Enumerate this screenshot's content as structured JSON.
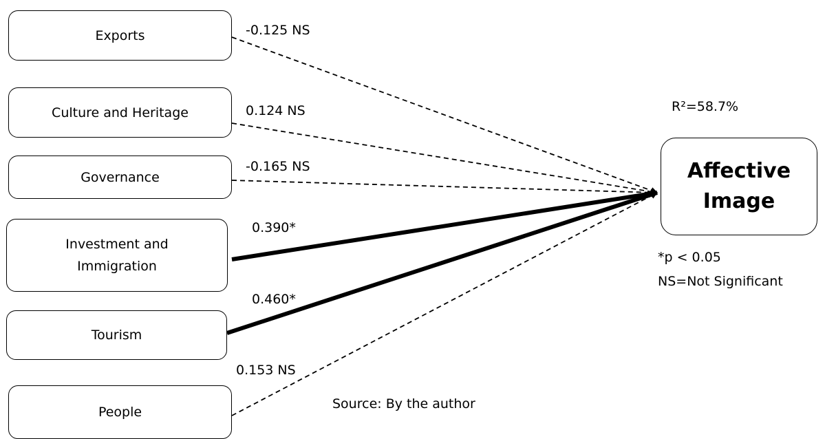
{
  "predictors": [
    {
      "label": "Exports",
      "coef": "-0.125 NS",
      "significant": false
    },
    {
      "label": "Culture and Heritage",
      "coef": "0.124 NS",
      "significant": false
    },
    {
      "label": "Governance",
      "coef": "-0.165 NS",
      "significant": false
    },
    {
      "label": "Investment and Immigration",
      "label_lines": [
        "Investment and",
        "Immigration"
      ],
      "coef": "0.390*",
      "significant": true
    },
    {
      "label": "Tourism",
      "coef": "0.460*",
      "significant": true
    },
    {
      "label": "People",
      "coef": "0.153 NS",
      "significant": false
    }
  ],
  "target": {
    "lines": [
      "Affective",
      "Image"
    ]
  },
  "r_squared": "R²=58.7%",
  "notes": {
    "significance": "*p < 0.05",
    "ns": "NS=Not Significant"
  },
  "source": "Source: By the author"
}
